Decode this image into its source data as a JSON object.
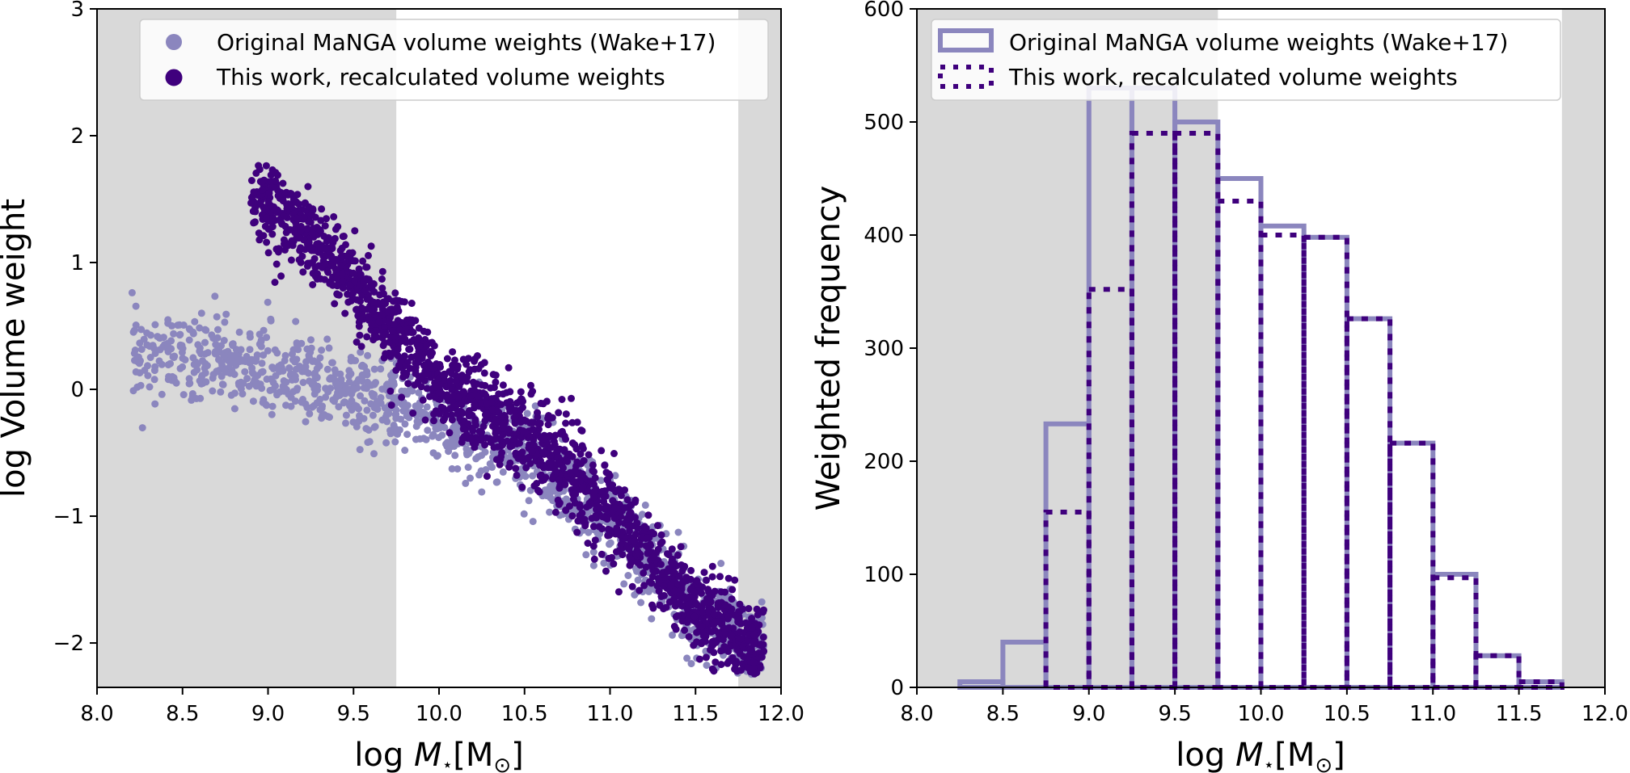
{
  "colors": {
    "original": "#8b86be",
    "recalculated": "#3f007d",
    "shade": "#d9d9d9",
    "axis": "#000000"
  },
  "chart_data": [
    {
      "type": "scatter",
      "xlabel_prefix": "log ",
      "xlabel_var": "M",
      "xlabel_sub": "⋆",
      "xlabel_unit": "[M",
      "xlabel_unit_sub": "⊙",
      "xlabel_close": "]",
      "ylabel": "log Volume weight",
      "xlim": [
        8.0,
        12.0
      ],
      "ylim": [
        -2.35,
        3.0
      ],
      "xticks": [
        "8.0",
        "8.5",
        "9.0",
        "9.5",
        "10.0",
        "10.5",
        "11.0",
        "11.5",
        "12.0"
      ],
      "yticks": [
        "−2",
        "−1",
        "0",
        "1",
        "2",
        "3"
      ],
      "shaded_x_ranges": [
        [
          8.0,
          9.75
        ],
        [
          11.75,
          12.0
        ]
      ],
      "legend_position": "top-right",
      "legend": [
        "Original MaNGA volume weights (Wake+17)",
        "This work, recalculated volume weights"
      ],
      "series": [
        {
          "name": "Original MaNGA volume weights (Wake+17)",
          "marker": "circle",
          "trend_x": [
            8.2,
            8.5,
            9.0,
            9.5,
            9.75,
            10.0,
            10.5,
            11.0,
            11.5,
            11.9
          ],
          "trend_y": [
            0.3,
            0.25,
            0.15,
            -0.05,
            -0.15,
            -0.25,
            -0.5,
            -1.0,
            -1.75,
            -2.05
          ],
          "scatter_sd": 0.17,
          "n_points": 1400
        },
        {
          "name": "This work, recalculated volume weights",
          "marker": "circle",
          "trend_x": [
            8.9,
            9.2,
            9.5,
            9.75,
            10.0,
            10.5,
            11.0,
            11.5,
            11.9
          ],
          "trend_y": [
            1.55,
            1.25,
            0.85,
            0.4,
            0.05,
            -0.35,
            -0.95,
            -1.75,
            -2.1
          ],
          "scatter_sd": 0.17,
          "n_points": 1800
        }
      ]
    },
    {
      "type": "bar",
      "histtype": "step",
      "xlabel_prefix": "log ",
      "xlabel_var": "M",
      "xlabel_sub": "⋆",
      "xlabel_unit": "[M",
      "xlabel_unit_sub": "⊙",
      "xlabel_close": "]",
      "ylabel": "Weighted frequency",
      "xlim": [
        8.0,
        12.0
      ],
      "ylim": [
        0,
        600
      ],
      "xticks": [
        "8.0",
        "8.5",
        "9.0",
        "9.5",
        "10.0",
        "10.5",
        "11.0",
        "11.5",
        "12.0"
      ],
      "yticks": [
        "0",
        "100",
        "200",
        "300",
        "400",
        "500",
        "600"
      ],
      "shaded_x_ranges": [
        [
          8.0,
          9.75
        ],
        [
          11.75,
          12.0
        ]
      ],
      "legend_position": "top-right",
      "legend": [
        "Original MaNGA volume weights (Wake+17)",
        "This work, recalculated volume weights"
      ],
      "bin_edges": [
        8.0,
        8.25,
        8.5,
        8.75,
        9.0,
        9.25,
        9.5,
        9.75,
        10.0,
        10.25,
        10.5,
        10.75,
        11.0,
        11.25,
        11.5,
        11.75,
        12.0
      ],
      "series": [
        {
          "name": "Original MaNGA volume weights (Wake+17)",
          "values": [
            0,
            5,
            40,
            233,
            530,
            530,
            500,
            450,
            408,
            398,
            326,
            216,
            100,
            28,
            5,
            0
          ]
        },
        {
          "name": "This work, recalculated volume weights",
          "values": [
            0,
            0,
            0,
            155,
            352,
            490,
            490,
            430,
            400,
            398,
            326,
            216,
            97,
            28,
            5,
            0
          ]
        }
      ]
    }
  ]
}
